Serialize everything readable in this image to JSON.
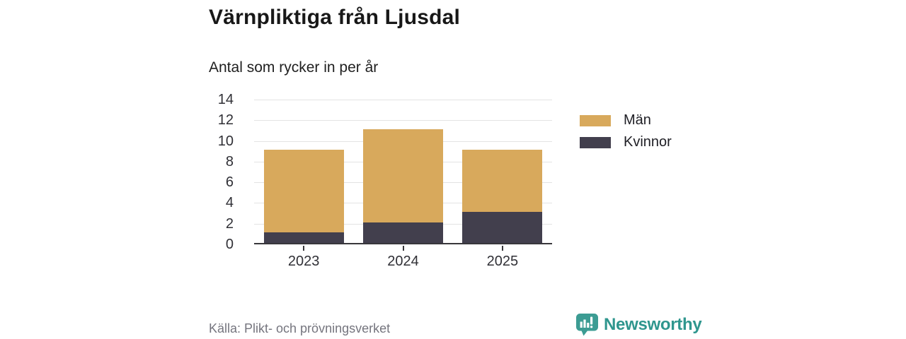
{
  "header": {
    "title": "Värnpliktiga från Ljusdal",
    "subtitle": "Antal som rycker in per år"
  },
  "chart_data": {
    "type": "bar",
    "stacked": true,
    "categories": [
      "2023",
      "2024",
      "2025"
    ],
    "series": [
      {
        "name": "Män",
        "values": [
          8,
          9,
          6
        ],
        "color": "#D8A95C"
      },
      {
        "name": "Kvinnor",
        "values": [
          1,
          2,
          3
        ],
        "color": "#423F4D"
      }
    ],
    "stack_order_bottom_to_top": [
      "Kvinnor",
      "Män"
    ],
    "totals": [
      9,
      11,
      9
    ],
    "title": "Värnpliktiga från Ljusdal",
    "subtitle": "Antal som rycker in per år",
    "xlabel": "",
    "ylabel": "",
    "ylim": [
      0,
      14
    ],
    "yticks": [
      0,
      2,
      4,
      6,
      8,
      10,
      12,
      14
    ],
    "grid": true,
    "legend_position": "right"
  },
  "footer": {
    "source": "Källa: Plikt- och prövningsverket",
    "brand": "Newsworthy"
  },
  "colors": {
    "men": "#D8A95C",
    "women": "#423F4D",
    "brand_teal": "#2F968E",
    "grid": "#E3E3E3",
    "axis": "#38373B",
    "tick_text": "#303036",
    "source_text": "#75757E",
    "title_text": "#181818"
  }
}
